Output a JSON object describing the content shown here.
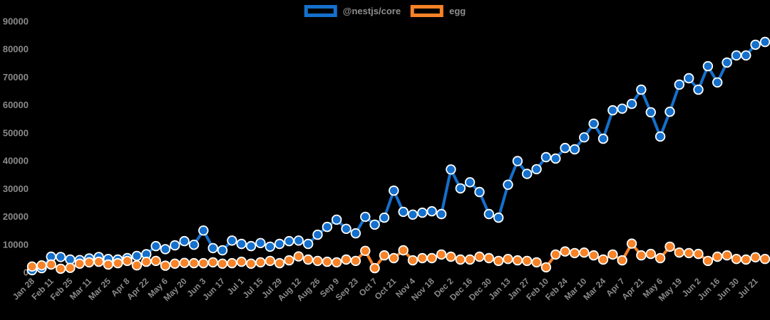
{
  "legend": [
    {
      "label": "@nestjs/core",
      "color": "#1470cc"
    },
    {
      "label": "egg",
      "color": "#f78227"
    }
  ],
  "chart_data": {
    "type": "line",
    "title": "",
    "xlabel": "",
    "ylabel": "",
    "background": "#000000",
    "axis_text_color": "#8a8a8a",
    "point_border_color": "#ffffff",
    "legend_position": "top-center",
    "grid": false,
    "ylim": [
      0,
      90000
    ],
    "y_ticks": [
      "0",
      "10000",
      "20000",
      "30000",
      "40000",
      "50000",
      "60000",
      "70000",
      "80000",
      "90000"
    ],
    "x_labels": [
      "Jan 28",
      "Feb 11",
      "Feb 25",
      "Mar 11",
      "Mar 25",
      "Apr 8",
      "Apr 22",
      "May 6",
      "May 20",
      "Jun 3",
      "Jun 17",
      "Jul 1",
      "Jul 15",
      "Jul 29",
      "Aug 12",
      "Aug 26",
      "Sep 9",
      "Sep 23",
      "Oct 7",
      "Oct 21",
      "Nov 4",
      "Nov 18",
      "Dec 2",
      "Dec 16",
      "Dec 30",
      "Jan 13",
      "Jan 27",
      "Feb 10",
      "Feb 24",
      "Mar 10",
      "Mar 24",
      "Apr 7",
      "Apr 21",
      "May 6",
      "May 19",
      "Jun 2",
      "Jun 16",
      "Jun 30",
      "Jul 21"
    ],
    "x_label_every": 2,
    "series": [
      {
        "name": "@nestjs/core",
        "color": "#1470cc",
        "values": [
          800,
          1500,
          5600,
          5500,
          4600,
          4400,
          5000,
          5500,
          4800,
          4600,
          5100,
          5900,
          6500,
          9400,
          8300,
          9700,
          11200,
          9900,
          15000,
          8700,
          7900,
          11400,
          10200,
          9400,
          10500,
          9200,
          10200,
          11200,
          11400,
          10200,
          13500,
          16300,
          18900,
          15600,
          14000,
          19900,
          17100,
          19600,
          29300,
          21700,
          20700,
          21400,
          21900,
          20900,
          36900,
          30100,
          32300,
          28800,
          20900,
          19600,
          31400,
          39900,
          35300,
          37000,
          41300,
          40800,
          44600,
          44100,
          48400,
          53300,
          47900,
          58100,
          58700,
          60400,
          65500,
          57400,
          48700,
          57600,
          67300,
          69600,
          65500,
          73900,
          68100,
          75200,
          77800,
          77800,
          81600,
          82600
        ]
      },
      {
        "name": "egg",
        "color": "#f78227",
        "values": [
          2100,
          2500,
          2800,
          1300,
          1600,
          3100,
          3600,
          3800,
          2800,
          3300,
          4100,
          2500,
          3800,
          4100,
          2400,
          3100,
          3400,
          3300,
          3300,
          3600,
          3100,
          3300,
          3800,
          3100,
          3600,
          4100,
          3300,
          4300,
          5700,
          4600,
          4100,
          3800,
          3600,
          4600,
          4100,
          7700,
          1500,
          6100,
          5100,
          7900,
          4300,
          5100,
          5100,
          6400,
          5600,
          4600,
          4600,
          5600,
          5100,
          4100,
          4800,
          4300,
          4100,
          3600,
          1800,
          6400,
          7500,
          6900,
          7100,
          6100,
          4600,
          6400,
          4300,
          10300,
          6100,
          6600,
          5100,
          9200,
          7100,
          6900,
          6600,
          4100,
          5600,
          6100,
          4800,
          4600,
          5400,
          4800
        ]
      }
    ]
  }
}
